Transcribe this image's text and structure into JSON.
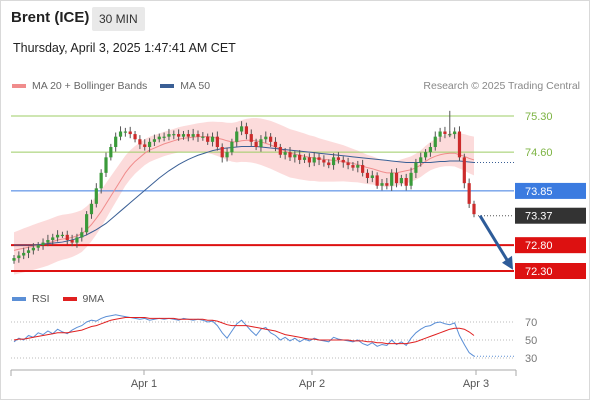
{
  "header": {
    "title": "Brent (ICE)",
    "timeframe": "30 MIN"
  },
  "datetime": "Thursday, April 3, 2025 1:47:41 AM CET",
  "legend": {
    "items": [
      {
        "label": "MA 20 + Bollinger Bands",
        "color": "#f08c8c"
      },
      {
        "label": "MA 50",
        "color": "#3a5f95"
      }
    ],
    "source": "Research © 2025 Trading Central"
  },
  "rsi_legend": {
    "items": [
      {
        "label": "RSI",
        "color": "#5b8fd6"
      },
      {
        "label": "9MA",
        "color": "#e02020"
      }
    ]
  },
  "colors": {
    "resistance": "#9ccc65",
    "pivot": "#3b7be0",
    "support": "#dd1111",
    "last": "#333333",
    "arrow": "#2e5c99"
  },
  "levels": [
    {
      "value": 75.3,
      "label": "75.30",
      "type": "resistance"
    },
    {
      "value": 74.6,
      "label": "74.60",
      "type": "resistance"
    },
    {
      "value": 73.85,
      "label": "73.85",
      "type": "pivot"
    },
    {
      "value": 73.37,
      "label": "73.37",
      "type": "last"
    },
    {
      "value": 72.8,
      "label": "72.80",
      "type": "support"
    },
    {
      "value": 72.3,
      "label": "72.30",
      "type": "support"
    }
  ],
  "rsi_axis": [
    "70",
    "50",
    "30"
  ],
  "x_axis": [
    "Apr 1",
    "Apr 2",
    "Apr 3"
  ],
  "chart_data": {
    "type": "candlestick",
    "price_range": [
      72.3,
      75.3
    ],
    "close": [
      72.55,
      72.6,
      72.65,
      72.7,
      72.75,
      72.8,
      72.85,
      72.9,
      72.95,
      73.0,
      73.0,
      72.9,
      72.85,
      72.95,
      73.05,
      73.4,
      73.6,
      73.9,
      74.2,
      74.5,
      74.7,
      74.9,
      75.0,
      75.0,
      74.95,
      74.85,
      74.75,
      74.7,
      74.8,
      74.85,
      74.9,
      74.9,
      74.95,
      74.95,
      74.9,
      74.95,
      74.9,
      74.95,
      74.9,
      74.9,
      74.8,
      74.9,
      74.7,
      74.5,
      74.6,
      74.8,
      75.0,
      75.1,
      74.95,
      74.8,
      74.7,
      74.85,
      74.9,
      74.8,
      74.7,
      74.55,
      74.6,
      74.5,
      74.55,
      74.45,
      74.5,
      74.4,
      74.5,
      74.45,
      74.4,
      74.35,
      74.5,
      74.45,
      74.4,
      74.35,
      74.3,
      74.35,
      74.2,
      74.1,
      74.15,
      73.95,
      74.0,
      73.95,
      74.2,
      74.0,
      74.1,
      73.95,
      74.2,
      74.4,
      74.5,
      74.6,
      74.7,
      74.9,
      75.0,
      74.95,
      74.95,
      75.0,
      74.5,
      74.0,
      73.6,
      73.4
    ],
    "ma20": [
      72.7,
      72.72,
      72.74,
      72.76,
      72.78,
      72.8,
      72.82,
      72.84,
      72.87,
      72.9,
      72.92,
      72.93,
      72.95,
      72.98,
      73.02,
      73.1,
      73.2,
      73.32,
      73.45,
      73.6,
      73.75,
      73.9,
      74.05,
      74.2,
      74.32,
      74.42,
      74.5,
      74.58,
      74.64,
      74.68,
      74.72,
      74.76,
      74.79,
      74.82,
      74.85,
      74.87,
      74.88,
      74.89,
      74.9,
      74.9,
      74.9,
      74.89,
      74.87,
      74.85,
      74.82,
      74.8,
      74.8,
      74.82,
      74.83,
      74.83,
      74.82,
      74.8,
      74.77,
      74.74,
      74.7,
      74.66,
      74.62,
      74.58,
      74.56,
      74.54,
      74.52,
      74.5,
      74.49,
      74.47,
      74.46,
      74.45,
      74.44,
      74.43,
      74.42,
      74.4,
      74.38,
      74.36,
      74.33,
      74.3,
      74.28,
      74.25,
      74.22,
      74.2,
      74.2,
      74.2,
      74.22,
      74.24,
      74.26,
      74.3,
      74.35,
      74.42,
      74.48,
      74.52,
      74.55,
      74.57,
      74.58,
      74.58,
      74.55,
      74.52,
      74.48,
      74.45
    ],
    "ma50": [
      72.8,
      72.8,
      72.8,
      72.8,
      72.8,
      72.81,
      72.82,
      72.83,
      72.84,
      72.85,
      72.86,
      72.88,
      72.9,
      72.93,
      72.96,
      73.0,
      73.05,
      73.1,
      73.16,
      73.22,
      73.3,
      73.38,
      73.46,
      73.54,
      73.62,
      73.7,
      73.78,
      73.86,
      73.94,
      74.02,
      74.1,
      74.17,
      74.24,
      74.3,
      74.36,
      74.41,
      74.46,
      74.5,
      74.54,
      74.57,
      74.6,
      74.63,
      74.65,
      74.67,
      74.68,
      74.69,
      74.7,
      74.71,
      74.71,
      74.71,
      74.71,
      74.7,
      74.69,
      74.68,
      74.67,
      74.66,
      74.65,
      74.64,
      74.63,
      74.62,
      74.61,
      74.6,
      74.59,
      74.58,
      74.57,
      74.56,
      74.55,
      74.54,
      74.53,
      74.52,
      74.51,
      74.5,
      74.49,
      74.48,
      74.47,
      74.46,
      74.45,
      74.44,
      74.43,
      74.42,
      74.41,
      74.4,
      74.4,
      74.4,
      74.4,
      74.4,
      74.4,
      74.41,
      74.42,
      74.42,
      74.43,
      74.43,
      74.43,
      74.42,
      74.41,
      74.4
    ],
    "rsi": [
      48,
      52,
      50,
      55,
      53,
      58,
      56,
      60,
      57,
      62,
      59,
      57,
      61,
      64,
      66,
      70,
      72,
      71,
      74,
      76,
      77,
      78,
      77,
      76,
      75,
      74,
      73,
      74,
      72,
      73,
      74,
      73,
      74,
      73,
      72,
      74,
      73,
      72,
      73,
      72,
      70,
      71,
      66,
      58,
      52,
      60,
      68,
      72,
      66,
      60,
      55,
      62,
      64,
      58,
      55,
      50,
      53,
      49,
      52,
      48,
      51,
      49,
      52,
      50,
      49,
      48,
      53,
      51,
      50,
      49,
      48,
      50,
      46,
      44,
      47,
      43,
      45,
      44,
      50,
      45,
      48,
      44,
      52,
      58,
      62,
      65,
      66,
      69,
      70,
      68,
      67,
      69,
      55,
      45,
      36,
      32
    ],
    "rsi_ma": [
      50,
      51,
      51,
      52,
      53,
      54,
      55,
      56,
      57,
      58,
      58,
      58,
      59,
      60,
      61,
      63,
      65,
      66,
      68,
      70,
      72,
      73,
      74,
      75,
      75,
      75,
      75,
      75,
      74,
      74,
      74,
      74,
      74,
      74,
      73,
      73,
      73,
      73,
      73,
      73,
      72,
      72,
      71,
      69,
      67,
      66,
      66,
      66,
      66,
      65,
      64,
      63,
      62,
      61,
      60,
      58,
      56,
      55,
      54,
      53,
      52,
      51,
      51,
      50,
      50,
      50,
      50,
      50,
      50,
      50,
      49,
      49,
      49,
      48,
      48,
      47,
      47,
      46,
      46,
      46,
      46,
      46,
      47,
      48,
      50,
      52,
      54,
      56,
      58,
      60,
      62,
      63,
      63,
      62,
      59,
      55
    ]
  }
}
